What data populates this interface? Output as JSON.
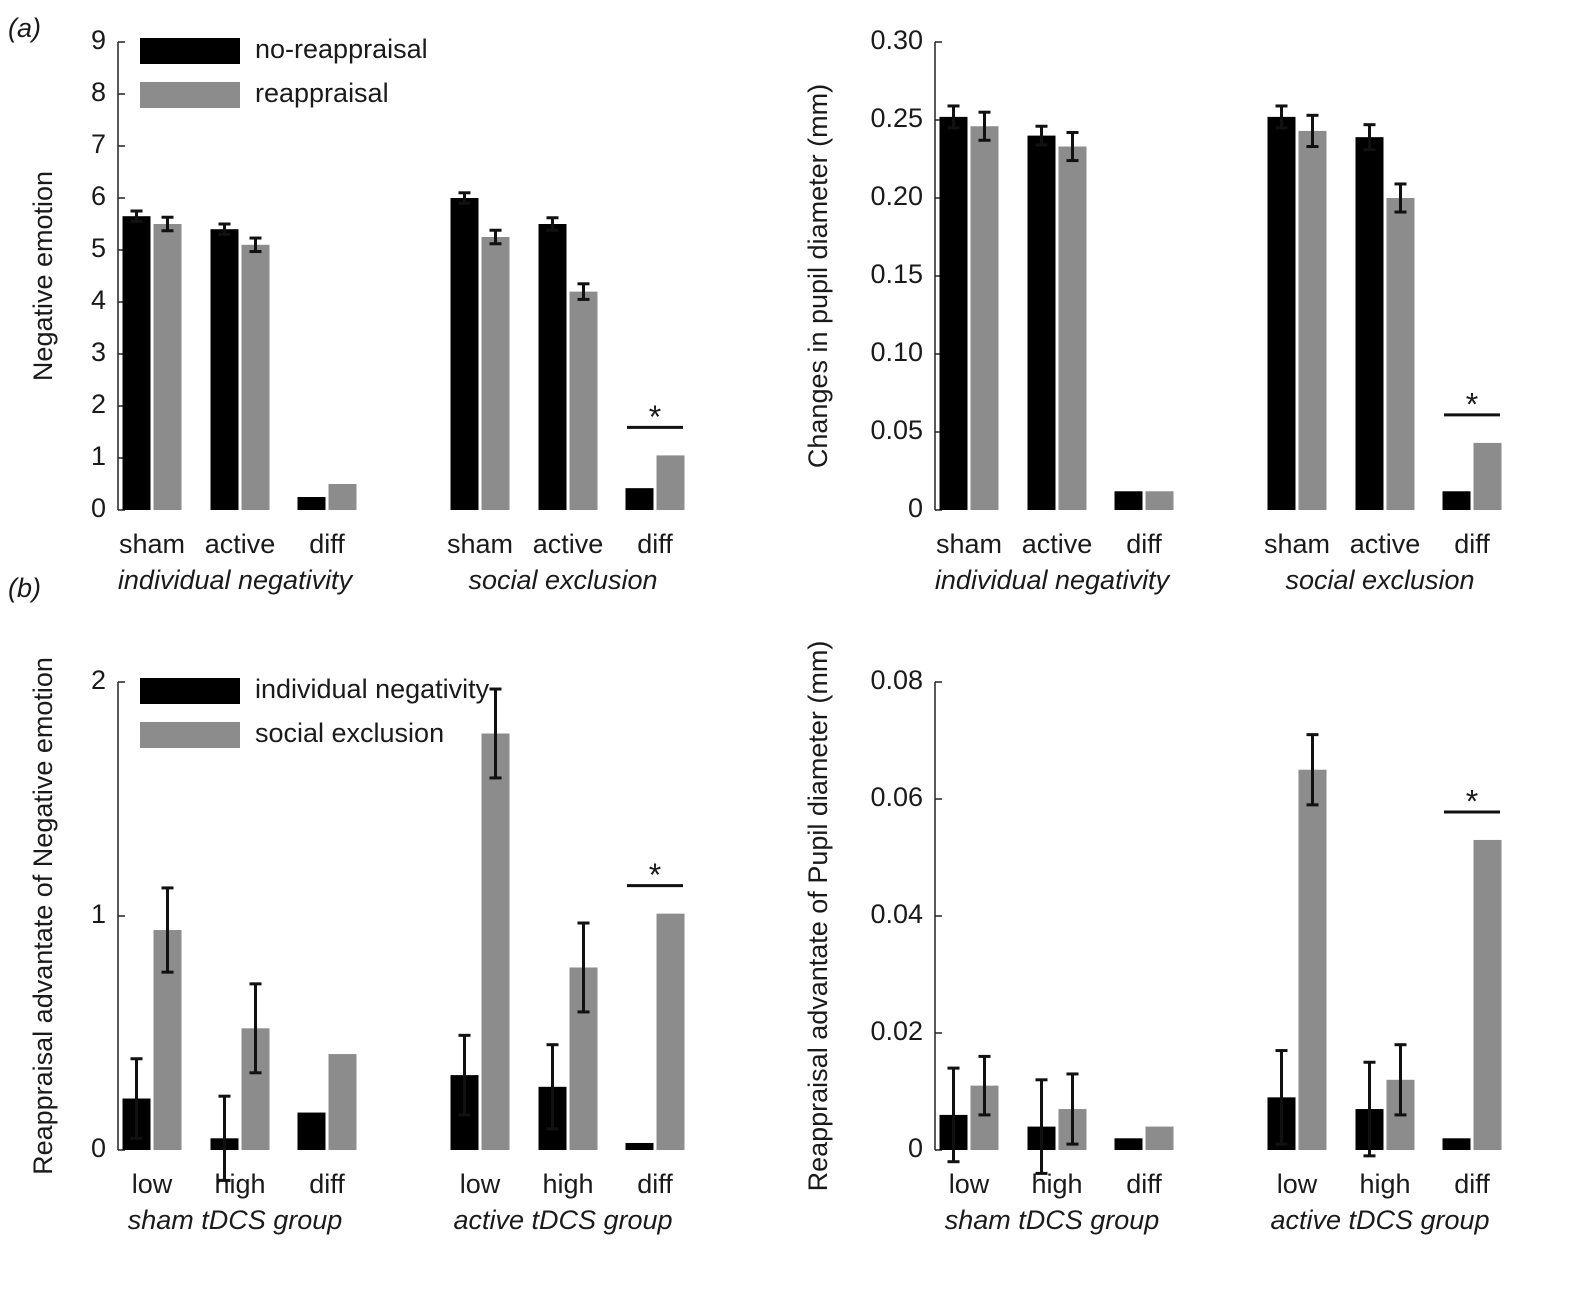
{
  "panel_labels": [
    "(a)",
    "(b)"
  ],
  "chart_data": [
    {
      "type": "bar",
      "ylabel": "Negative emotion",
      "categories": [
        "sham",
        "active",
        "diff",
        "sham",
        "active",
        "diff"
      ],
      "groups": [
        "individual negativity",
        "social exclusion"
      ],
      "series": [
        {
          "name": "no-reappraisal",
          "color": "#000000",
          "values": [
            5.65,
            5.4,
            0.25,
            6.0,
            5.5,
            0.42
          ],
          "errors": [
            0.1,
            0.1,
            null,
            0.1,
            0.12,
            null
          ]
        },
        {
          "name": "reappraisal",
          "color": "#8c8c8c",
          "values": [
            5.5,
            5.1,
            0.5,
            5.25,
            4.2,
            1.05
          ],
          "errors": [
            0.13,
            0.13,
            null,
            0.13,
            0.15,
            null
          ]
        }
      ],
      "ylim": [
        0,
        9
      ],
      "yticks": [
        0,
        1,
        2,
        3,
        4,
        5,
        6,
        7,
        8,
        9
      ],
      "annotation": "*"
    },
    {
      "type": "bar",
      "ylabel": "Changes in pupil diameter (mm)",
      "categories": [
        "sham",
        "active",
        "diff",
        "sham",
        "active",
        "diff"
      ],
      "groups": [
        "individual negativity",
        "social exclusion"
      ],
      "series": [
        {
          "name": "no-reappraisal",
          "color": "#000000",
          "values": [
            0.252,
            0.24,
            0.012,
            0.252,
            0.239,
            0.012
          ],
          "errors": [
            0.007,
            0.006,
            null,
            0.007,
            0.008,
            null
          ]
        },
        {
          "name": "reappraisal",
          "color": "#8c8c8c",
          "values": [
            0.246,
            0.233,
            0.012,
            0.243,
            0.2,
            0.043
          ],
          "errors": [
            0.009,
            0.009,
            null,
            0.01,
            0.009,
            null
          ]
        }
      ],
      "ylim": [
        0,
        0.3
      ],
      "yticks": [
        0,
        0.05,
        {
          "value": 0.1,
          "label": "0.10"
        },
        0.15,
        {
          "value": 0.2,
          "label": "0.20"
        },
        0.25,
        {
          "value": 0.3,
          "label": "0.30"
        }
      ],
      "annotation": "*"
    },
    {
      "type": "bar",
      "ylabel": "Reappraisal advantate of Negative emotion",
      "categories": [
        "low",
        "high",
        "diff",
        "low",
        "high",
        "diff"
      ],
      "groups": [
        "sham tDCS group",
        "active tDCS group"
      ],
      "series": [
        {
          "name": "individual negativity",
          "color": "#000000",
          "values": [
            0.22,
            0.05,
            0.16,
            0.32,
            0.27,
            0.03
          ],
          "errors": [
            0.17,
            0.18,
            null,
            0.17,
            0.18,
            null
          ]
        },
        {
          "name": "social exclusion",
          "color": "#8c8c8c",
          "values": [
            0.94,
            0.52,
            0.41,
            1.78,
            0.78,
            1.01
          ],
          "errors": [
            0.18,
            0.19,
            null,
            0.19,
            0.19,
            null
          ]
        }
      ],
      "ylim": [
        0,
        2
      ],
      "yticks": [
        0,
        1,
        2
      ],
      "annotation": "*"
    },
    {
      "type": "bar",
      "ylabel": "Reappraisal advantate of Pupil diameter (mm)",
      "categories": [
        "low",
        "high",
        "diff",
        "low",
        "high",
        "diff"
      ],
      "groups": [
        "sham tDCS group",
        "active tDCS group"
      ],
      "series": [
        {
          "name": "individual negativity",
          "color": "#000000",
          "values": [
            0.006,
            0.004,
            0.002,
            0.009,
            0.007,
            0.002
          ],
          "errors": [
            0.008,
            0.008,
            null,
            0.008,
            0.008,
            null
          ]
        },
        {
          "name": "social exclusion",
          "color": "#8c8c8c",
          "values": [
            0.011,
            0.007,
            0.004,
            0.065,
            0.012,
            0.053
          ],
          "errors": [
            0.005,
            0.006,
            null,
            0.006,
            0.006,
            null
          ]
        }
      ],
      "ylim": [
        0,
        0.08
      ],
      "yticks": [
        0,
        0.02,
        0.04,
        0.06,
        0.08
      ],
      "annotation": "*"
    }
  ]
}
